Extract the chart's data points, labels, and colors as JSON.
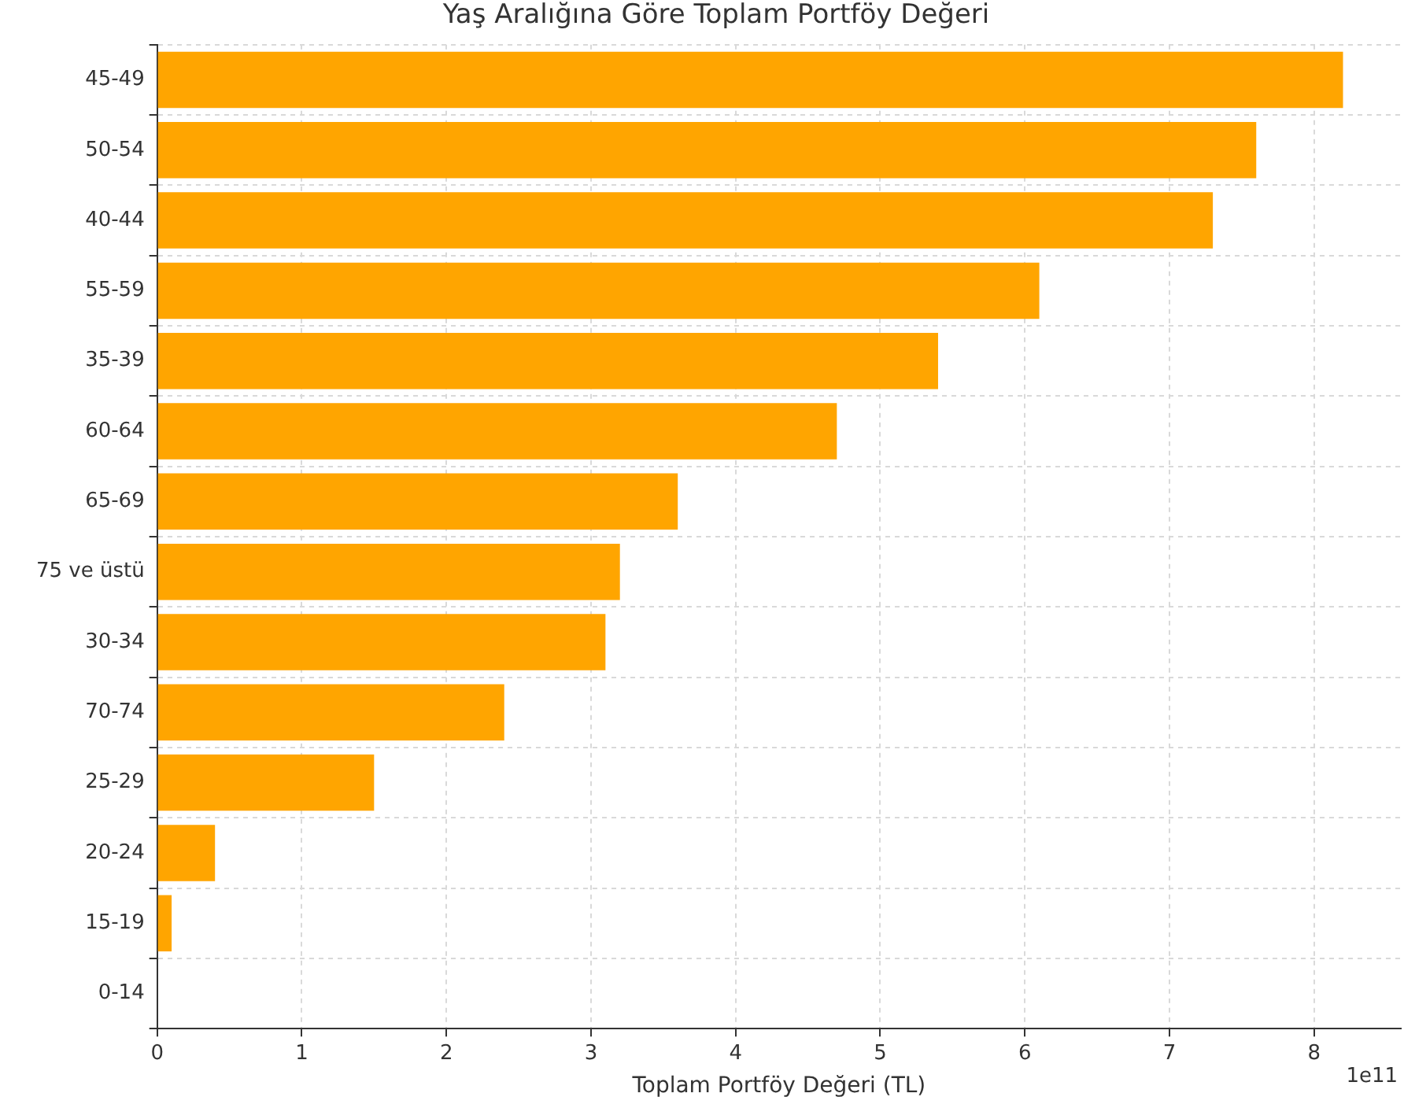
{
  "chart_data": {
    "type": "bar",
    "orientation": "horizontal",
    "title": "Yaş Aralığına Göre Toplam Portföy Değeri",
    "xlabel": "Toplam Portföy Değeri (TL)",
    "categories": [
      "45-49",
      "50-54",
      "40-44",
      "55-59",
      "35-39",
      "60-64",
      "65-69",
      "75 ve üstü",
      "30-34",
      "70-74",
      "25-29",
      "20-24",
      "15-19",
      "0-14"
    ],
    "values": [
      8.2,
      7.6,
      7.3,
      6.1,
      5.4,
      4.7,
      3.6,
      3.2,
      3.1,
      2.4,
      1.5,
      0.4,
      0.1,
      0
    ],
    "color": "#ffa500",
    "xlim": [
      0,
      8.6
    ],
    "xticks": [
      0,
      1,
      2,
      3,
      4,
      5,
      6,
      7,
      8
    ],
    "annotations": [
      "1e11"
    ],
    "grid": true,
    "legend": false
  }
}
